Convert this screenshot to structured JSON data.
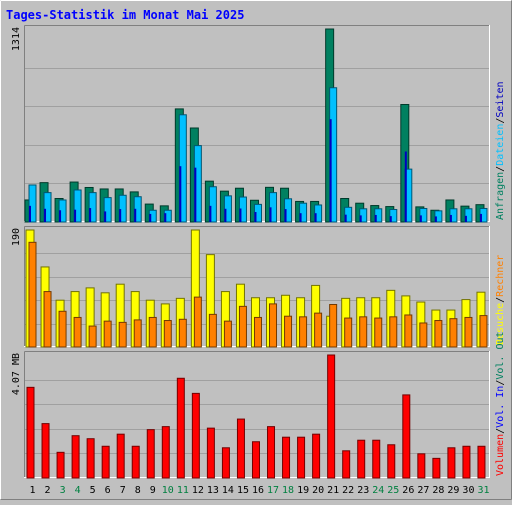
{
  "chart_data": {
    "type": "bar",
    "title": "Tages-Statistik im Monat Mai 2025",
    "colors": {
      "background": "#c0c0c0",
      "plot_bg": "#c0c0c0",
      "grid": "#a0a0a0",
      "title": "#0000ff",
      "weekday": "#000000",
      "weekend": "#008040",
      "anfragen": "#008060",
      "dateien": "#00c0ff",
      "seiten": "#0000c0",
      "besuche": "#ffff00",
      "rechner": "#ff8000",
      "volumen": "#ff0000",
      "vol_in": "#0000ff",
      "vol_out": "#008060"
    },
    "categories": [
      "1",
      "2",
      "3",
      "4",
      "5",
      "6",
      "7",
      "8",
      "9",
      "10",
      "11",
      "12",
      "13",
      "14",
      "15",
      "16",
      "17",
      "18",
      "19",
      "20",
      "21",
      "22",
      "23",
      "24",
      "25",
      "26",
      "27",
      "28",
      "29",
      "30",
      "31"
    ],
    "weekend_days": [
      "3",
      "4",
      "10",
      "11",
      "17",
      "18",
      "24",
      "25",
      "31"
    ],
    "panels": [
      {
        "ytick": "1314",
        "ymax": 1314,
        "series": [
          {
            "name": "Anfragen",
            "values": [
              150,
              268,
              160,
              272,
              235,
              225,
              225,
              205,
              122,
              110,
              770,
              640,
              278,
              210,
              230,
              148,
              236,
              230,
              140,
              140,
              1314,
              160,
              128,
              112,
              105,
              800,
              103,
              80,
              150,
              108,
              118
            ]
          },
          {
            "name": "Dateien",
            "values": [
              252,
              200,
              150,
              218,
              200,
              166,
              182,
              172,
              80,
              80,
              730,
              520,
              240,
              178,
              170,
              120,
              200,
              158,
              128,
              116,
              914,
              100,
              90,
              90,
              85,
              360,
              92,
              76,
              90,
              90,
              92
            ]
          },
          {
            "name": "Seiten",
            "values": [
              110,
              90,
              80,
              84,
              95,
              72,
              88,
              90,
              55,
              60,
              380,
              370,
              110,
              90,
              92,
              68,
              100,
              88,
              60,
              60,
              700,
              50,
              45,
              48,
              40,
              480,
              45,
              38,
              48,
              42,
              55
            ]
          }
        ],
        "legend": [
          {
            "name": "Anfragen",
            "color": "anfragen"
          },
          {
            "name": "Dateien",
            "color": "dateien"
          },
          {
            "name": "Seiten",
            "color": "seiten"
          }
        ]
      },
      {
        "ytick": "190",
        "ymax": 190,
        "series": [
          {
            "name": "Besuche",
            "values": [
              190,
              130,
              76,
              90,
              96,
              88,
              102,
              90,
              76,
              70,
              79,
              190,
              150,
              90,
              102,
              80,
              80,
              84,
              80,
              100,
              50,
              79,
              80,
              80,
              92,
              83,
              73,
              60,
              60,
              77,
              89
            ]
          },
          {
            "name": "Rechner",
            "values": [
              170,
              90,
              58,
              48,
              34,
              42,
              40,
              44,
              48,
              43,
              45,
              81,
              53,
              42,
              66,
              48,
              70,
              50,
              49,
              55,
              69,
              47,
              49,
              47,
              49,
              52,
              39,
              43,
              46,
              48,
              51
            ]
          }
        ],
        "legend": [
          {
            "name": "Besuche",
            "color": "besuche"
          },
          {
            "name": "Rechner",
            "color": "rechner"
          }
        ]
      },
      {
        "ytick": "4.07 MB",
        "ymax": 4.07,
        "series": [
          {
            "name": "Volumen",
            "values": [
              3.0,
              1.8,
              0.85,
              1.4,
              1.3,
              1.05,
              1.45,
              1.05,
              1.6,
              1.7,
              3.3,
              2.8,
              1.65,
              1.0,
              1.95,
              1.2,
              1.7,
              1.35,
              1.35,
              1.45,
              4.07,
              0.9,
              1.25,
              1.25,
              1.1,
              2.75,
              0.8,
              0.65,
              1.0,
              1.05,
              1.05
            ]
          }
        ],
        "legend": [
          {
            "name": "Volumen",
            "color": "volumen"
          },
          {
            "name": "Vol. In",
            "color": "vol_in"
          },
          {
            "name": "Vol. Out",
            "color": "vol_out"
          }
        ]
      }
    ]
  }
}
